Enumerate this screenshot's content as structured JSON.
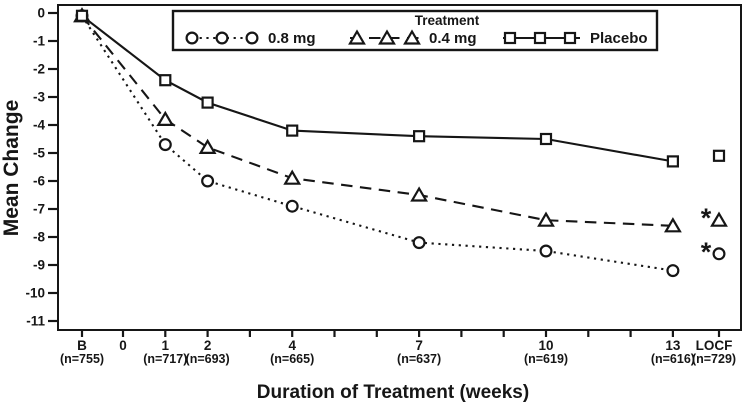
{
  "figure": {
    "background": "#ffffff",
    "ink_color": "#161616"
  },
  "chart_data": {
    "type": "line",
    "title": "",
    "xlabel": "Duration of Treatment (weeks)",
    "ylabel": "Mean Change",
    "ylim": [
      -11,
      0
    ],
    "yticks": [
      0,
      -1,
      -2,
      -3,
      -4,
      -5,
      -6,
      -7,
      -8,
      -9,
      -10,
      -11
    ],
    "x_minor_ticks": [
      "B",
      0,
      1,
      2,
      3,
      4,
      5,
      6,
      7,
      8,
      9,
      10,
      11,
      12,
      13,
      "LOCF"
    ],
    "x_categories": [
      {
        "label": "B",
        "n": "(n=755)"
      },
      {
        "label": "0",
        "n": ""
      },
      {
        "label": "1",
        "n": "(n=717)"
      },
      {
        "label": "2",
        "n": "(n=693)"
      },
      {
        "label": "4",
        "n": "(n=665)"
      },
      {
        "label": "7",
        "n": "(n=637)"
      },
      {
        "label": "10",
        "n": "(n=619)"
      },
      {
        "label": "13",
        "n": "(n=616)"
      },
      {
        "label": "LOCF",
        "n": "(n=729)"
      }
    ],
    "weeks": [
      "B",
      1,
      2,
      4,
      7,
      10,
      13
    ],
    "series": [
      {
        "name": "0.8 mg",
        "marker": "circle",
        "line": "dotted",
        "values": [
          -0.1,
          -4.7,
          -6.0,
          -6.9,
          -8.2,
          -8.5,
          -9.2
        ],
        "locf": -8.6,
        "locf_flag": "*"
      },
      {
        "name": "0.4 mg",
        "marker": "triangle",
        "line": "dashed",
        "values": [
          -0.1,
          -3.8,
          -4.8,
          -5.9,
          -6.5,
          -7.4,
          -7.6
        ],
        "locf": -7.4,
        "locf_flag": "*"
      },
      {
        "name": "Placebo",
        "marker": "square",
        "line": "solid",
        "values": [
          -0.1,
          -2.4,
          -3.2,
          -4.2,
          -4.4,
          -4.5,
          -5.3
        ],
        "locf": -5.1,
        "locf_flag": ""
      }
    ],
    "legend": {
      "title": "Treatment",
      "position": "top-inside",
      "entries": [
        "0.8 mg",
        "0.4 mg",
        "Placebo"
      ]
    },
    "annotations": {
      "significance_marker": "*",
      "note": "* shown beside 0.4 mg and 0.8 mg LOCF points"
    },
    "grid": false
  }
}
